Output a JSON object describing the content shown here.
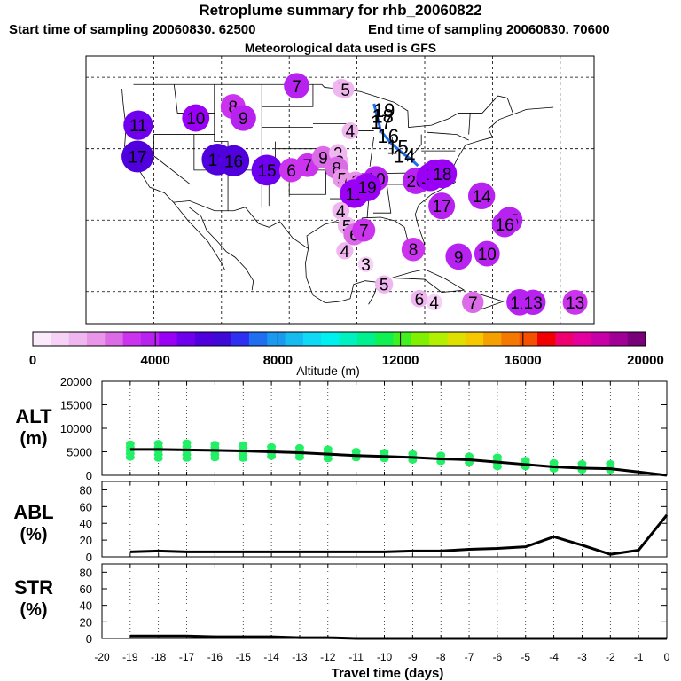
{
  "header": {
    "title": "Retroplume summary for rhb_20060822",
    "start_sampling": "Start time of sampling 20060830. 62500",
    "end_sampling": "End time of sampling 20060830. 70600",
    "met_data": "Meteorological data used is GFS"
  },
  "colorbar": {
    "label": "Altitude (m)",
    "ticks": [
      "0",
      "4000",
      "8000",
      "12000",
      "16000",
      "20000"
    ],
    "range": [
      0,
      20000
    ],
    "colors": [
      "#fbeafb",
      "#f6d3f6",
      "#efb6ef",
      "#e996e9",
      "#dc6be8",
      "#cc33ee",
      "#b822f0",
      "#9900f5",
      "#6f00ee",
      "#4f00dd",
      "#3d0ad8",
      "#2f2ff2",
      "#1f6ff0",
      "#1a99ee",
      "#17bbf0",
      "#10d8f5",
      "#00f0f0",
      "#00f0c0",
      "#00f090",
      "#10f050",
      "#40f020",
      "#80f000",
      "#b0f000",
      "#e0e000",
      "#f5c800",
      "#f5a000",
      "#f57800",
      "#f55000",
      "#f00000",
      "#f0006e",
      "#e4009e",
      "#c800a8",
      "#a00096",
      "#780078"
    ]
  },
  "map": {
    "points": [
      {
        "label": "7",
        "lon": -98.9,
        "lat": 48.8,
        "alt": 3700
      },
      {
        "label": "6",
        "lon": -92.3,
        "lat": 48.5,
        "alt": 1700
      },
      {
        "label": "5",
        "lon": -91.7,
        "lat": 48.3,
        "alt": 1500
      },
      {
        "label": "8",
        "lon": -108.3,
        "lat": 45.9,
        "alt": 3500
      },
      {
        "label": "10",
        "lon": -113.8,
        "lat": 44.3,
        "alt": 4200
      },
      {
        "label": "9",
        "lon": -106.8,
        "lat": 44.3,
        "alt": 3800
      },
      {
        "label": "11",
        "lon": -122.3,
        "lat": 43.3,
        "alt": 4800
      },
      {
        "label": "4",
        "lon": -91.0,
        "lat": 42.5,
        "alt": 1200
      },
      {
        "label": "17",
        "lon": -122.4,
        "lat": 38.9,
        "alt": 5500
      },
      {
        "label": "18",
        "lon": -110.6,
        "lat": 38.5,
        "alt": 5400
      },
      {
        "label": "16",
        "lon": -108.2,
        "lat": 38.3,
        "alt": 5300
      },
      {
        "label": "15",
        "lon": -103.3,
        "lat": 37.0,
        "alt": 5200
      },
      {
        "label": "6",
        "lon": -99.7,
        "lat": 37.0,
        "alt": 3300
      },
      {
        "label": "7",
        "lon": -97.3,
        "lat": 37.7,
        "alt": 3200
      },
      {
        "label": "9",
        "lon": -95.0,
        "lat": 38.8,
        "alt": 2800
      },
      {
        "label": "2",
        "lon": -92.8,
        "lat": 39.4,
        "alt": 1600
      },
      {
        "label": "3",
        "lon": -92.6,
        "lat": 38.2,
        "alt": 1700
      },
      {
        "label": "8",
        "lon": -93.0,
        "lat": 37.3,
        "alt": 2900
      },
      {
        "label": "5",
        "lon": -92.2,
        "lat": 35.8,
        "alt": 1900
      },
      {
        "label": "6",
        "lon": -91.2,
        "lat": 35.2,
        "alt": 2200
      },
      {
        "label": "1",
        "lon": -90.2,
        "lat": 35.5,
        "alt": 1800
      },
      {
        "label": "0",
        "lon": -89.3,
        "lat": 35.0,
        "alt": 2500
      },
      {
        "label": "10",
        "lon": -87.2,
        "lat": 35.8,
        "alt": 3600
      },
      {
        "label": "11",
        "lon": -90.4,
        "lat": 33.7,
        "alt": 4600
      },
      {
        "label": "19",
        "lon": -88.5,
        "lat": 34.6,
        "alt": 4400
      },
      {
        "label": "20",
        "lon": -81.3,
        "lat": 35.5,
        "alt": 4000
      },
      {
        "label": "13",
        "lon": -79.2,
        "lat": 36.0,
        "alt": 4300
      },
      {
        "label": "12",
        "lon": -78.4,
        "lat": 36.5,
        "alt": 4500
      },
      {
        "label": "18",
        "lon": -77.4,
        "lat": 36.5,
        "alt": 4700
      },
      {
        "label": "14",
        "lon": -71.6,
        "lat": 33.4,
        "alt": 4100
      },
      {
        "label": "17",
        "lon": -77.5,
        "lat": 32.0,
        "alt": 4000
      },
      {
        "label": "4",
        "lon": -92.4,
        "lat": 31.3,
        "alt": 1400
      },
      {
        "label": "5",
        "lon": -91.5,
        "lat": 29.2,
        "alt": 1600
      },
      {
        "label": "6",
        "lon": -90.4,
        "lat": 28.0,
        "alt": 2600
      },
      {
        "label": "7",
        "lon": -89.0,
        "lat": 28.6,
        "alt": 3000
      },
      {
        "label": "15",
        "lon": -67.5,
        "lat": 30.0,
        "alt": 3900
      },
      {
        "label": "16",
        "lon": -68.2,
        "lat": 29.4,
        "alt": 3700
      },
      {
        "label": "4",
        "lon": -91.8,
        "lat": 25.7,
        "alt": 1300
      },
      {
        "label": "8",
        "lon": -81.7,
        "lat": 25.9,
        "alt": 3100
      },
      {
        "label": "9",
        "lon": -75.0,
        "lat": 24.9,
        "alt": 3900
      },
      {
        "label": "10",
        "lon": -70.8,
        "lat": 25.3,
        "alt": 3700
      },
      {
        "label": "3",
        "lon": -88.7,
        "lat": 23.8,
        "alt": 900
      },
      {
        "label": "5",
        "lon": -86.0,
        "lat": 21.0,
        "alt": 1600
      },
      {
        "label": "6",
        "lon": -80.8,
        "lat": 19.0,
        "alt": 1400
      },
      {
        "label": "4",
        "lon": -78.6,
        "lat": 18.5,
        "alt": 1100
      },
      {
        "label": "7",
        "lon": -72.9,
        "lat": 18.5,
        "alt": 2600
      },
      {
        "label": "12",
        "lon": -66.0,
        "lat": 18.5,
        "alt": 3900
      },
      {
        "label": "13",
        "lon": -64.0,
        "lat": 18.5,
        "alt": 3600
      },
      {
        "label": "13",
        "lon": -57.8,
        "lat": 18.5,
        "alt": 3500
      }
    ],
    "trajectory": {
      "labels": [
        {
          "label": "19",
          "lon": -86.0,
          "lat": 45.4
        },
        {
          "label": "18",
          "lon": -86.2,
          "lat": 44.6
        },
        {
          "label": "17",
          "lon": -86.4,
          "lat": 43.8
        },
        {
          "label": "16",
          "lon": -85.4,
          "lat": 41.8
        },
        {
          "label": "15",
          "lon": -84.0,
          "lat": 40.3
        },
        {
          "label": "14",
          "lon": -83.0,
          "lat": 39.0
        }
      ],
      "path": [
        [
          -87.5,
          46.3
        ],
        [
          -87.0,
          44.5
        ],
        [
          -86.5,
          42.5
        ],
        [
          -85.0,
          40.8
        ],
        [
          -83.3,
          39.4
        ],
        [
          -82.0,
          38.5
        ],
        [
          -81.0,
          37.6
        ]
      ]
    }
  },
  "panels": {
    "alt": {
      "title": "ALT",
      "unit": "(m)",
      "ylim": [
        0,
        20000
      ],
      "ticks": [
        "20000",
        "15000",
        "10000",
        "5000",
        "0"
      ]
    },
    "abl": {
      "title": "ABL",
      "unit": "(%)",
      "ylim": [
        0,
        90
      ],
      "ticks": [
        "80",
        "60",
        "40",
        "20",
        "0"
      ]
    },
    "str": {
      "title": "STR",
      "unit": "(%)",
      "ylim": [
        0,
        90
      ],
      "ticks": [
        "80",
        "60",
        "40",
        "20",
        "0"
      ]
    }
  },
  "xaxis": {
    "label": "Travel time (days)",
    "range": [
      -20,
      0
    ],
    "ticks": [
      "-20",
      "-19",
      "-18",
      "-17",
      "-16",
      "-15",
      "-14",
      "-13",
      "-12",
      "-11",
      "-10",
      "-9",
      "-8",
      "-7",
      "-6",
      "-5",
      "-4",
      "-3",
      "-2",
      "-1",
      "0"
    ]
  },
  "chart_data": [
    {
      "type": "line",
      "title": "ALT",
      "xlabel": "Travel time (days)",
      "ylabel": "ALT (m)",
      "ylim": [
        0,
        20000
      ],
      "x": [
        -19,
        -18,
        -17,
        -16,
        -15,
        -14,
        -13,
        -12,
        -11,
        -10,
        -9,
        -8,
        -7,
        -6,
        -5,
        -4,
        -3,
        -2,
        -1,
        0
      ],
      "values": [
        5500,
        5500,
        5400,
        5300,
        5200,
        5000,
        4800,
        4500,
        4200,
        4000,
        3800,
        3500,
        3300,
        2800,
        2300,
        1800,
        1500,
        1400,
        700,
        0
      ],
      "scatter": [
        {
          "x": -19,
          "y": [
            6700,
            6000,
            5300,
            4600,
            3800
          ]
        },
        {
          "x": -18,
          "y": [
            6800,
            6000,
            5200,
            4400,
            3600
          ]
        },
        {
          "x": -17,
          "y": [
            6900,
            6100,
            5200,
            4400,
            3600
          ]
        },
        {
          "x": -16,
          "y": [
            6600,
            5900,
            5100,
            4400,
            3700
          ]
        },
        {
          "x": -15,
          "y": [
            6500,
            5800,
            5000,
            4300,
            3600
          ]
        },
        {
          "x": -14,
          "y": [
            6100,
            5400,
            4700,
            4000
          ]
        },
        {
          "x": -13,
          "y": [
            5900,
            5200,
            4500,
            3800
          ]
        },
        {
          "x": -12,
          "y": [
            5600,
            4900,
            4200,
            3500
          ]
        },
        {
          "x": -11,
          "y": [
            5100,
            4400,
            3700
          ]
        },
        {
          "x": -10,
          "y": [
            4900,
            4200,
            3500
          ]
        },
        {
          "x": -9,
          "y": [
            4600,
            3900,
            3200
          ]
        },
        {
          "x": -8,
          "y": [
            4300,
            3600,
            2900
          ]
        },
        {
          "x": -7,
          "y": [
            4100,
            3400,
            2700
          ]
        },
        {
          "x": -6,
          "y": [
            3900,
            3200,
            2500,
            1800
          ]
        },
        {
          "x": -5,
          "y": [
            3200,
            2500,
            1800
          ]
        },
        {
          "x": -4,
          "y": [
            2700,
            2000,
            1300
          ]
        },
        {
          "x": -3,
          "y": [
            2500,
            1800,
            1100
          ]
        },
        {
          "x": -2,
          "y": [
            2500,
            1800,
            1100
          ]
        }
      ]
    },
    {
      "type": "line",
      "title": "ABL",
      "xlabel": "Travel time (days)",
      "ylabel": "ABL (%)",
      "ylim": [
        0,
        90
      ],
      "x": [
        -19,
        -18,
        -17,
        -16,
        -15,
        -14,
        -13,
        -12,
        -11,
        -10,
        -9,
        -8,
        -7,
        -6,
        -5,
        -4,
        -3,
        -2,
        -1,
        0
      ],
      "values": [
        6,
        7,
        6,
        6,
        6,
        6,
        6,
        6,
        6,
        6,
        7,
        7,
        9,
        10,
        12,
        24,
        14,
        3,
        8,
        50
      ]
    },
    {
      "type": "line",
      "title": "STR",
      "xlabel": "Travel time (days)",
      "ylabel": "STR (%)",
      "ylim": [
        0,
        90
      ],
      "x": [
        -19,
        -18,
        -17,
        -16,
        -15,
        -14,
        -13,
        -12,
        -11,
        -10,
        -9,
        -8,
        -7,
        -6,
        -5,
        -4,
        -3,
        -2,
        -1,
        0
      ],
      "values": [
        3,
        3,
        3,
        2,
        2,
        2,
        1,
        1,
        0,
        0,
        0,
        0,
        0,
        0,
        0,
        0,
        0,
        0,
        0,
        0
      ]
    }
  ]
}
